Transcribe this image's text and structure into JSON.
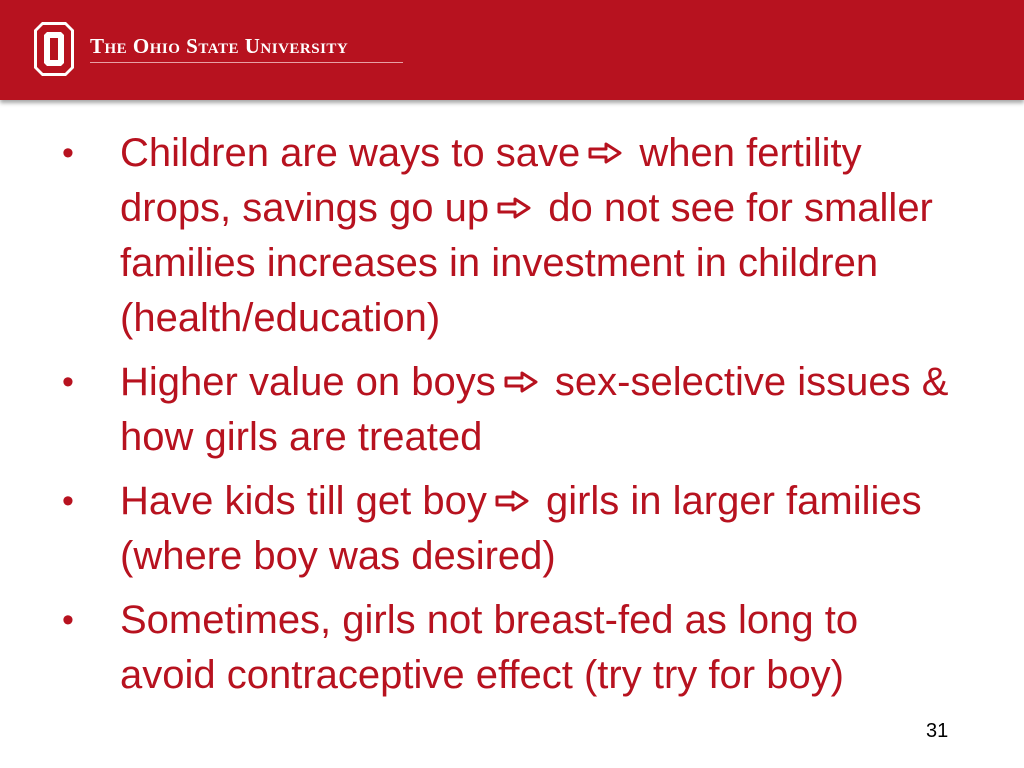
{
  "header": {
    "logo_text": "The Ohio State University"
  },
  "bullets": [
    [
      "Children are ways to save",
      "when fertility drops, savings go up",
      "do not see for smaller families increases in investment in children (health/education)"
    ],
    [
      "Higher value on boys",
      "sex-selective issues & how girls are treated"
    ],
    [
      "Have kids till get boy",
      "girls in larger families (where boy was desired)"
    ],
    [
      "Sometimes, girls not breast-fed as long to avoid contraceptive effect (try try for boy)"
    ]
  ],
  "page_number": "31"
}
